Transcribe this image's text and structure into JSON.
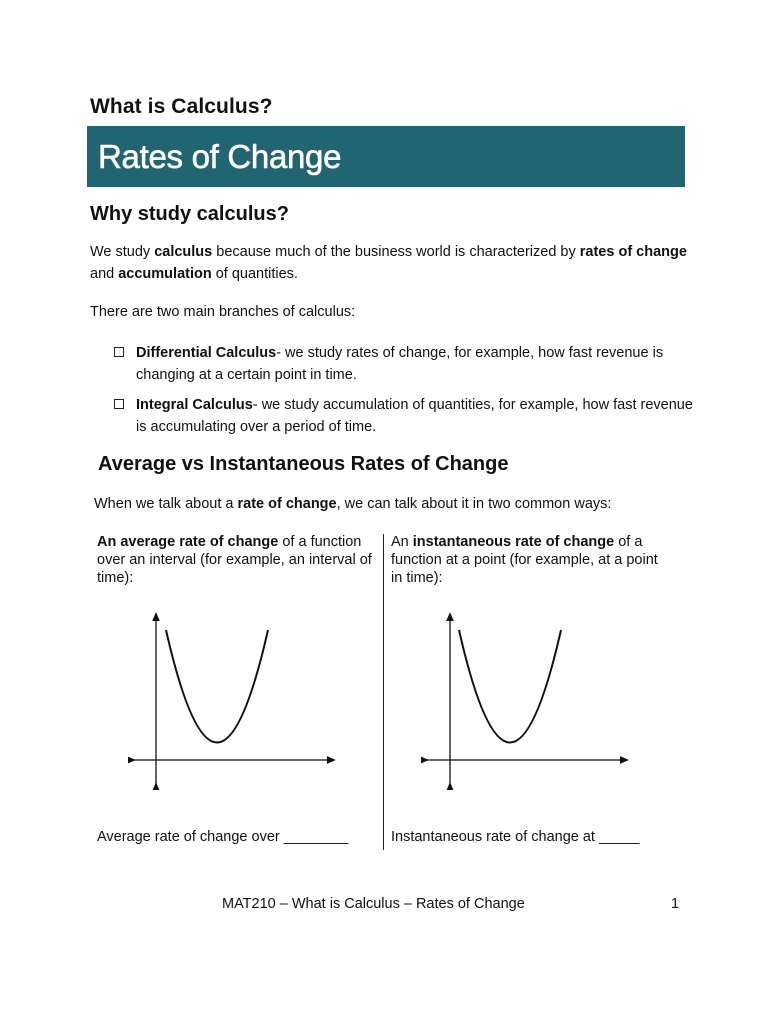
{
  "header": {
    "kicker": "What is Calculus?",
    "title": "Rates of Change",
    "banner_color": "#216472"
  },
  "why": {
    "heading": "Why study calculus?",
    "intro": [
      {
        "text": "We study ",
        "bold": false
      },
      {
        "text": "calculus",
        "bold": true
      },
      {
        "text": " because much of the business world is characterized by ",
        "bold": false
      },
      {
        "text": "rates of change",
        "bold": true
      },
      {
        "text": " and ",
        "bold": false
      },
      {
        "text": "accumulation",
        "bold": true
      },
      {
        "text": " of quantities.",
        "bold": false
      }
    ],
    "branches_intro": "There are two main branches of calculus:",
    "branches": [
      {
        "term": "Differential Calculus",
        "desc": "- we study rates of change, for example, how fast revenue is changing at a certain point in time."
      },
      {
        "term": "Integral Calculus",
        "desc": "- we study accumulation of quantities, for example, how fast revenue is accumulating over a period of time."
      }
    ]
  },
  "avg_vs_inst": {
    "heading": "Average vs Instantaneous Rates of Change",
    "intro": [
      {
        "text": "When we talk about a ",
        "bold": false
      },
      {
        "text": "rate of change",
        "bold": true
      },
      {
        "text": ", we can talk about it in two common ways:",
        "bold": false
      }
    ],
    "left": {
      "desc": [
        {
          "text": "An average rate of change",
          "bold": true
        },
        {
          "text": " of a function over an interval (for example, an interval of time):",
          "bold": false
        }
      ],
      "caption": "Average rate of change over ________",
      "graph_icon": "parabola-graph-icon"
    },
    "right": {
      "desc": [
        {
          "text": "An ",
          "bold": false
        },
        {
          "text": "instantaneous rate of change",
          "bold": true
        },
        {
          "text": " of a function at a point (for example, at a point in time):",
          "bold": false
        }
      ],
      "caption": "Instantaneous rate of change at _____",
      "graph_icon": "parabola-graph-icon"
    }
  },
  "footer": {
    "text": "MAT210 – What is Calculus – Rates of Change",
    "page_number": "1"
  }
}
